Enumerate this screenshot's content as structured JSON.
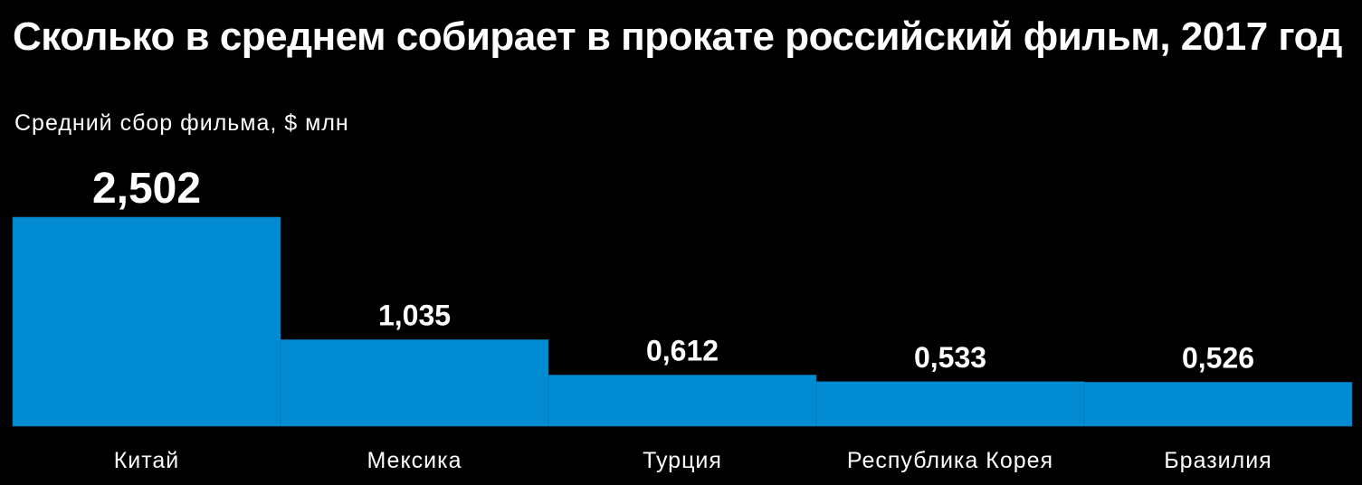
{
  "chart_data": {
    "type": "bar",
    "title": "Сколько в среднем собирает в прокате российский фильм, 2017 год",
    "subtitle": "Средний сбор фильма, $ млн",
    "categories": [
      "Китай",
      "Мексика",
      "Турция",
      "Республика Корея",
      "Бразилия"
    ],
    "values": [
      2.502,
      1.035,
      0.612,
      0.533,
      0.526
    ],
    "value_labels": [
      "2,502",
      "1,035",
      "0,612",
      "0,533",
      "0,526"
    ],
    "ylim": [
      0,
      2.502
    ],
    "grid": false,
    "bar_color": "#008bd2",
    "background": "#000000"
  }
}
